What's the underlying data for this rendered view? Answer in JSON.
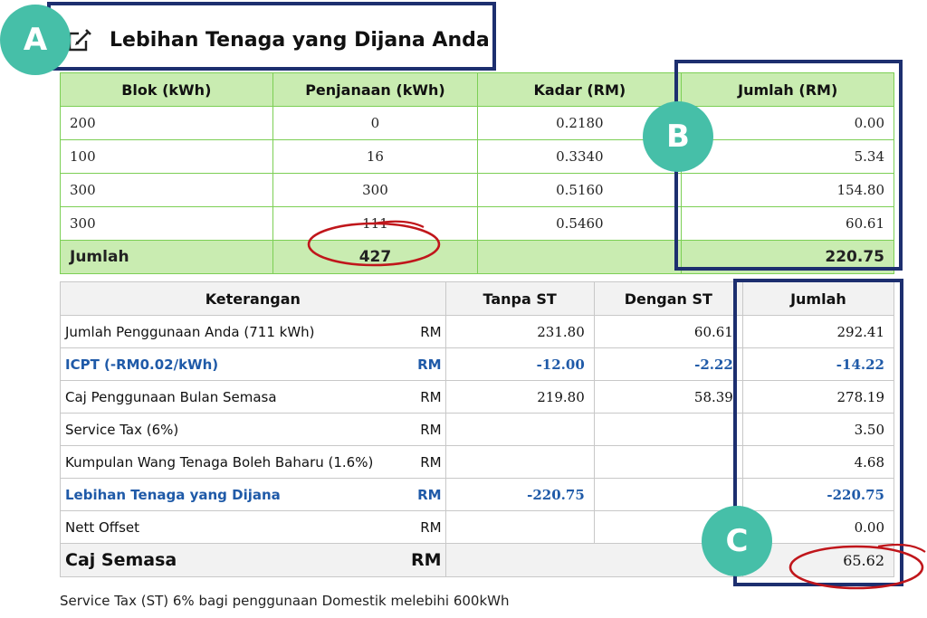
{
  "header": {
    "title": "Lebihan Tenaga yang Dijana Anda",
    "icon": "edit-icon"
  },
  "badges": {
    "a": "A",
    "b": "B",
    "c": "C"
  },
  "table1": {
    "headers": [
      "Blok (kWh)",
      "Penjanaan (kWh)",
      "Kadar (RM)",
      "Jumlah (RM)"
    ],
    "rows": [
      [
        "200",
        "0",
        "0.2180",
        "0.00"
      ],
      [
        "100",
        "16",
        "0.3340",
        "5.34"
      ],
      [
        "300",
        "300",
        "0.5160",
        "154.80"
      ],
      [
        "300",
        "111",
        "0.5460",
        "60.61"
      ]
    ],
    "total": {
      "label": "Jumlah",
      "penjanaan": "427",
      "jumlah": "220.75"
    }
  },
  "table2": {
    "headers": [
      "Keterangan",
      "Tanpa ST",
      "Dengan ST",
      "Jumlah"
    ],
    "rows": [
      {
        "label": "Jumlah Penggunaan Anda (711 kWh)",
        "rm": "RM",
        "tanpa": "231.80",
        "dengan": "60.61",
        "jumlah": "292.41"
      },
      {
        "label": "ICPT (-RM0.02/kWh)",
        "rm": "RM",
        "tanpa": "-12.00",
        "dengan": "-2.22",
        "jumlah": "-14.22"
      },
      {
        "label": "Caj Penggunaan Bulan Semasa",
        "rm": "RM",
        "tanpa": "219.80",
        "dengan": "58.39",
        "jumlah": "278.19"
      },
      {
        "label": "Service Tax (6%)",
        "rm": "RM",
        "tanpa": "",
        "dengan": "",
        "jumlah": "3.50"
      },
      {
        "label": "Kumpulan Wang Tenaga Boleh Baharu (1.6%)",
        "rm": "RM",
        "tanpa": "",
        "dengan": "",
        "jumlah": "4.68"
      },
      {
        "label": "Lebihan Tenaga yang Dijana",
        "rm": "RM",
        "tanpa": "-220.75",
        "dengan": "",
        "jumlah": "-220.75"
      },
      {
        "label": "Nett Offset",
        "rm": "RM",
        "tanpa": "",
        "dengan": "",
        "jumlah": "0.00"
      }
    ],
    "total": {
      "label": "Caj Semasa",
      "rm": "RM",
      "jumlah": "65.62"
    }
  },
  "footnote": "Service Tax (ST) 6% bagi penggunaan Domestik melebihi 600kWh",
  "colors": {
    "green_header": "#c9ecb1",
    "green_border": "#7ccf55",
    "highlight_blue": "#1d2f6f",
    "badge_teal": "#46bfa8",
    "circle_red": "#c0161b",
    "value_blue": "#1f5aa8"
  }
}
